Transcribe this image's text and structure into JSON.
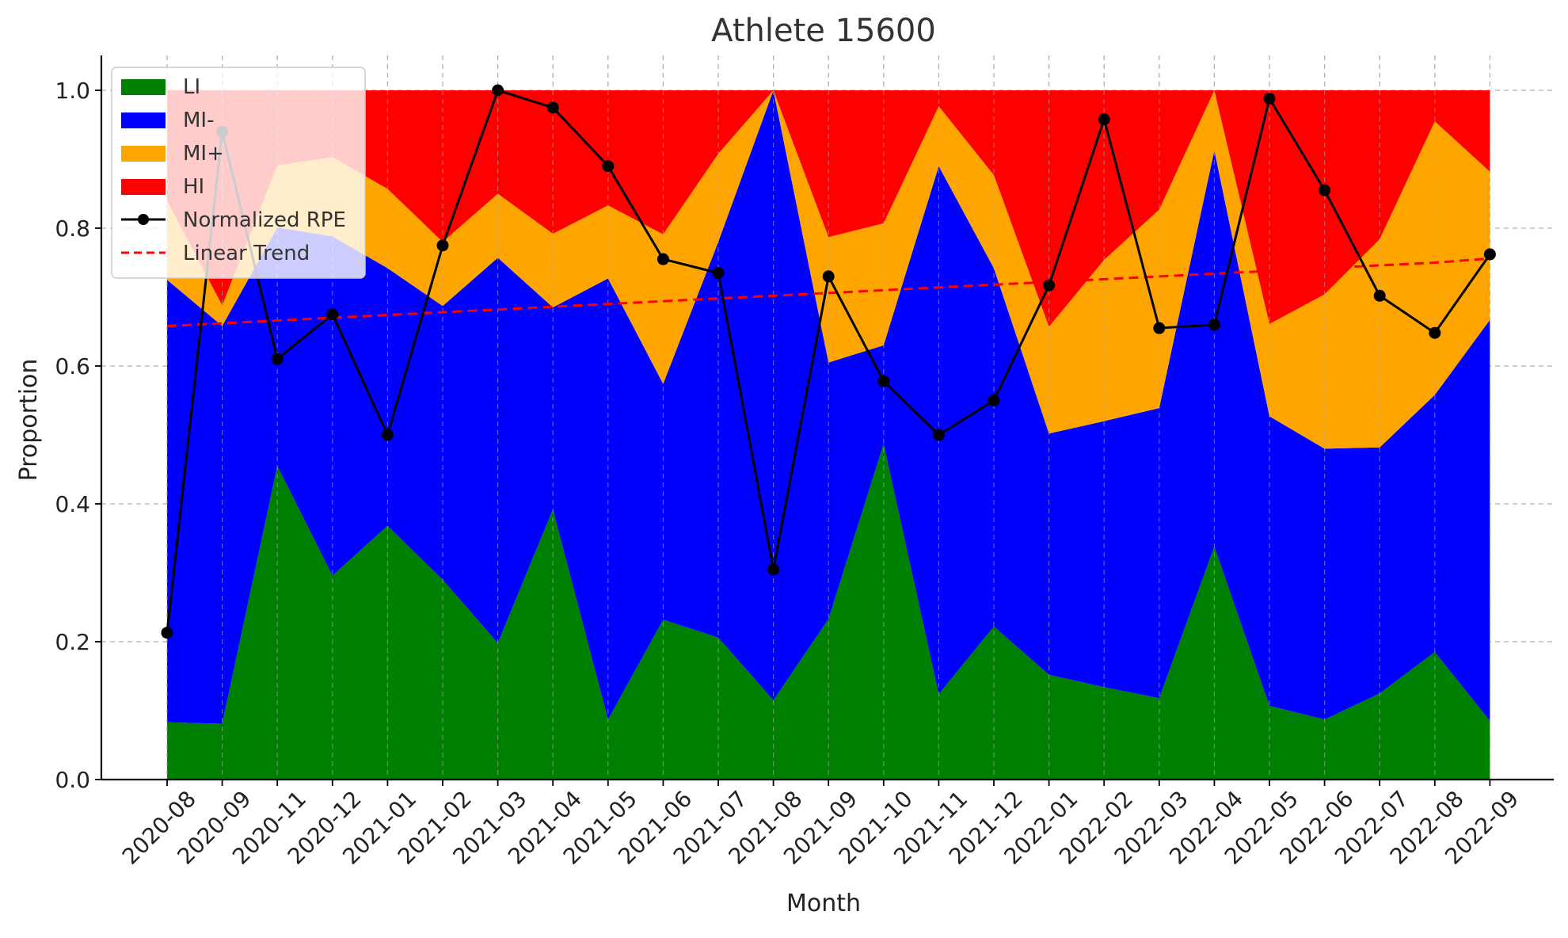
{
  "chart_data": {
    "type": "area",
    "title": "Athlete 15600",
    "xlabel": "Month",
    "ylabel": "Proportion",
    "ylim": [
      0,
      1.05
    ],
    "yticks": [
      "0.0",
      "0.2",
      "0.4",
      "0.6",
      "0.8",
      "1.0"
    ],
    "grid": true,
    "legend_position": "top-left",
    "categories": [
      "2020-08",
      "2020-09",
      "2020-11",
      "2020-12",
      "2021-01",
      "2021-02",
      "2021-03",
      "2021-04",
      "2021-05",
      "2021-06",
      "2021-07",
      "2021-08",
      "2021-09",
      "2021-10",
      "2021-11",
      "2021-12",
      "2022-01",
      "2022-02",
      "2022-03",
      "2022-04",
      "2022-05",
      "2022-06",
      "2022-07",
      "2022-08",
      "2022-09"
    ],
    "series": [
      {
        "name": "LI",
        "kind": "stacked-area",
        "color": "#008000",
        "values": [
          0.083,
          0.081,
          0.455,
          0.296,
          0.368,
          0.29,
          0.198,
          0.392,
          0.087,
          0.232,
          0.206,
          0.115,
          0.233,
          0.487,
          0.124,
          0.222,
          0.152,
          0.134,
          0.118,
          0.338,
          0.107,
          0.087,
          0.125,
          0.185,
          0.085
        ]
      },
      {
        "name": "MI-",
        "kind": "stacked-area",
        "color": "#0000ff",
        "values": [
          0.642,
          0.577,
          0.346,
          0.492,
          0.374,
          0.397,
          0.559,
          0.293,
          0.64,
          0.342,
          0.574,
          0.885,
          0.372,
          0.143,
          0.766,
          0.52,
          0.35,
          0.386,
          0.421,
          0.575,
          0.42,
          0.393,
          0.357,
          0.373,
          0.582
        ]
      },
      {
        "name": "MI+",
        "kind": "stacked-area",
        "color": "#ffa500",
        "values": [
          0.115,
          0.03,
          0.09,
          0.115,
          0.115,
          0.093,
          0.093,
          0.107,
          0.106,
          0.217,
          0.128,
          0.0,
          0.182,
          0.177,
          0.087,
          0.135,
          0.155,
          0.234,
          0.288,
          0.087,
          0.134,
          0.224,
          0.302,
          0.397,
          0.215
        ]
      },
      {
        "name": "HI",
        "kind": "stacked-area",
        "color": "#ff0000",
        "values": [
          0.16,
          0.312,
          0.109,
          0.097,
          0.143,
          0.22,
          0.15,
          0.208,
          0.167,
          0.209,
          0.092,
          0.0,
          0.213,
          0.193,
          0.023,
          0.123,
          0.343,
          0.246,
          0.173,
          0.0,
          0.339,
          0.296,
          0.216,
          0.045,
          0.118
        ]
      },
      {
        "name": "Normalized RPE",
        "kind": "line-markers",
        "color": "#000000",
        "values": [
          0.213,
          0.94,
          0.61,
          0.675,
          0.5,
          0.775,
          1.0,
          0.975,
          0.89,
          0.755,
          0.735,
          0.305,
          0.73,
          0.578,
          0.5,
          0.55,
          0.717,
          0.958,
          0.655,
          0.66,
          0.988,
          0.855,
          0.702,
          0.648,
          0.762
        ]
      },
      {
        "name": "Linear Trend",
        "kind": "dashed-line",
        "color": "#ff0000",
        "values": [
          0.658,
          0.662,
          0.666,
          0.67,
          0.674,
          0.678,
          0.682,
          0.686,
          0.69,
          0.694,
          0.698,
          0.702,
          0.706,
          0.71,
          0.714,
          0.718,
          0.722,
          0.726,
          0.73,
          0.734,
          0.738,
          0.742,
          0.746,
          0.75,
          0.756
        ]
      }
    ]
  }
}
